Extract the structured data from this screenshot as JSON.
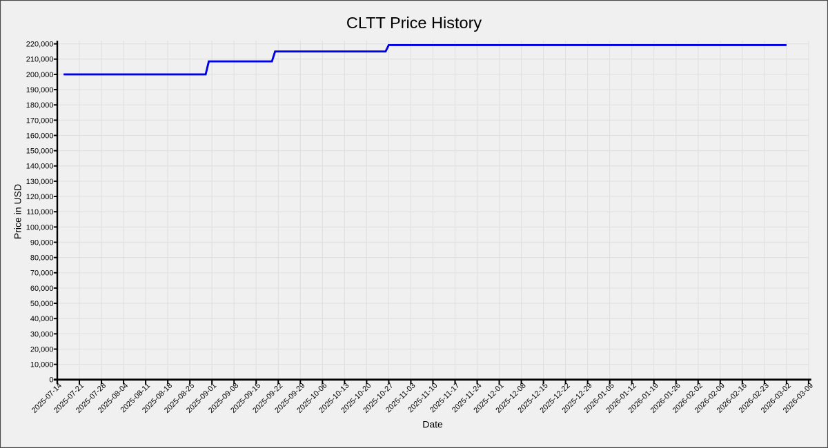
{
  "window": {
    "background_color": "#f0f0f0",
    "frame_border_color": "#4a4a4a",
    "frame_inner_highlight_color": "#fcfcfc"
  },
  "chart_data": {
    "type": "line",
    "title": "CLTT Price History",
    "xlabel": "Date",
    "ylabel": "Price in USD",
    "grid": true,
    "legend_position": "none",
    "plot_background_color": "#f0f0f0",
    "gridline_color": "#e1e1e1",
    "axis_color": "#000000",
    "xlim": [
      "2025-07-14",
      "2026-03-09"
    ],
    "ylim": [
      0,
      222000
    ],
    "x_tick_labels": [
      "2025-07-14",
      "2025-07-21",
      "2025-07-28",
      "2025-08-04",
      "2025-08-11",
      "2025-08-18",
      "2025-08-25",
      "2025-09-01",
      "2025-09-08",
      "2025-09-15",
      "2025-09-22",
      "2025-09-29",
      "2025-10-06",
      "2025-10-13",
      "2025-10-20",
      "2025-10-27",
      "2025-11-03",
      "2025-11-10",
      "2025-11-17",
      "2025-11-24",
      "2025-12-01",
      "2025-12-08",
      "2025-12-15",
      "2025-12-22",
      "2025-12-29",
      "2026-01-05",
      "2026-01-12",
      "2026-01-19",
      "2026-01-26",
      "2026-02-02",
      "2026-02-09",
      "2026-02-16",
      "2026-02-23",
      "2026-03-02",
      "2026-03-09"
    ],
    "y_ticks": [
      0,
      10000,
      20000,
      30000,
      40000,
      50000,
      60000,
      70000,
      80000,
      90000,
      100000,
      110000,
      120000,
      130000,
      140000,
      150000,
      160000,
      170000,
      180000,
      190000,
      200000,
      210000,
      220000
    ],
    "y_tick_labels": [
      "0",
      "10,000",
      "20,000",
      "30,000",
      "40,000",
      "50,000",
      "60,000",
      "70,000",
      "80,000",
      "90,000",
      "100,000",
      "110,000",
      "120,000",
      "130,000",
      "140,000",
      "150,000",
      "160,000",
      "170,000",
      "180,000",
      "190,000",
      "200,000",
      "210,000",
      "220,000"
    ],
    "series": [
      {
        "name": "CLTT",
        "color": "#0000e6",
        "points": [
          [
            "2025-07-16",
            200000
          ],
          [
            "2025-08-30",
            200000
          ],
          [
            "2025-08-31",
            208500
          ],
          [
            "2025-09-20",
            208500
          ],
          [
            "2025-09-21",
            215000
          ],
          [
            "2025-10-26",
            215000
          ],
          [
            "2025-10-27",
            219200
          ],
          [
            "2026-03-02",
            219200
          ]
        ]
      }
    ]
  }
}
